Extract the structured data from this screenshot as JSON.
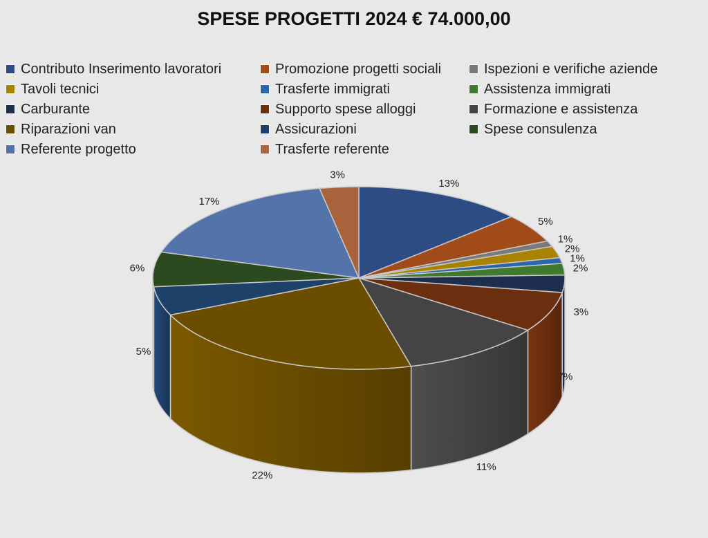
{
  "chart_data": {
    "type": "pie",
    "title": "SPESE PROGETTI 2024 € 74.000,00",
    "categories": [
      "Contributo Inserimento lavoratori",
      "Promozione progetti sociali",
      "Ispezioni e verifiche aziende",
      "Tavoli tecnici",
      "Trasferte immigrati",
      "Assistenza immigrati",
      "Carburante",
      "Supporto spese alloggi",
      "Formazione e assistenza",
      "Riparazioni van",
      "Assicurazioni",
      "Spese consulenza",
      "Referente progetto",
      "Trasferte referente"
    ],
    "values": [
      13,
      5,
      1,
      2,
      1,
      2,
      3,
      7,
      11,
      22,
      5,
      6,
      17,
      3
    ],
    "labels": [
      "13%",
      "5%",
      "1%",
      "2%",
      "1%",
      "2%",
      "3%",
      "7%",
      "11%",
      "22%",
      "5%",
      "6%",
      "17%",
      "3%"
    ],
    "colors": [
      "#2e4c84",
      "#a24b1a",
      "#7a7a7a",
      "#a98300",
      "#2b66a8",
      "#3f7a2f",
      "#1d2e4f",
      "#6b2e0f",
      "#444444",
      "#6b4d00",
      "#1e416a",
      "#2b4a1f",
      "#5473aa",
      "#a8633c"
    ],
    "legend_position": "top",
    "style": "3d"
  }
}
